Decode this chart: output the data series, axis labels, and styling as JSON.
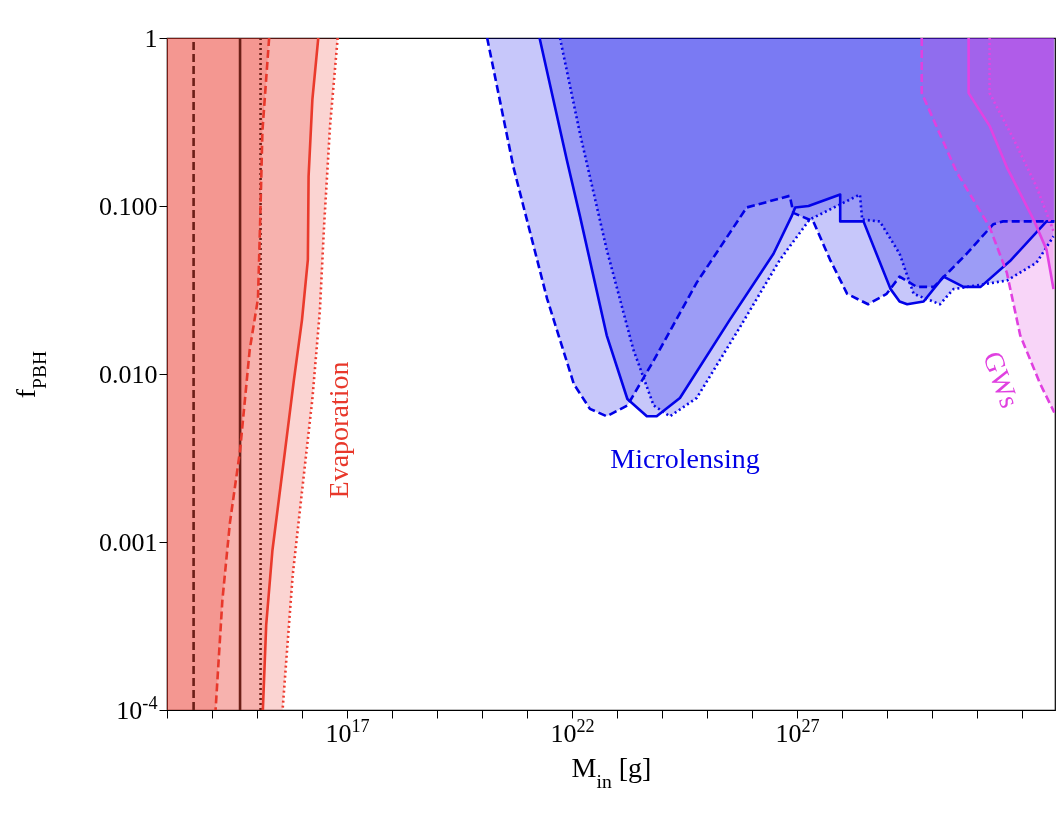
{
  "chart_data": {
    "type": "line",
    "xlabel": "M$_{in}$ [g]",
    "ylabel": "f$_{PBH}$",
    "log": "xy",
    "xlim": [
      10000000000000.0,
      5.4e+32
    ],
    "ylim": [
      0.0001,
      1
    ],
    "xticks": [
      {
        "value": 10000000000000.0,
        "label": null
      },
      {
        "value": 100000000000000.0,
        "label": null
      },
      {
        "value": 1000000000000000.0,
        "label": null
      },
      {
        "value": 1e+16,
        "label": null
      },
      {
        "value": 1e+17,
        "label": "10$^{17}$"
      },
      {
        "value": 1e+18,
        "label": null
      },
      {
        "value": 1e+19,
        "label": null
      },
      {
        "value": 1e+20,
        "label": null
      },
      {
        "value": 1e+21,
        "label": null
      },
      {
        "value": 1e+22,
        "label": "10$^{22}$"
      },
      {
        "value": 1e+23,
        "label": null
      },
      {
        "value": 1e+24,
        "label": null
      },
      {
        "value": 1e+25,
        "label": null
      },
      {
        "value": 1e+26,
        "label": null
      },
      {
        "value": 1e+27,
        "label": "10$^{27}$"
      },
      {
        "value": 1e+28,
        "label": null
      },
      {
        "value": 1e+29,
        "label": null
      },
      {
        "value": 1e+30,
        "label": null
      },
      {
        "value": 1e+31,
        "label": null
      },
      {
        "value": 1e+32,
        "label": null
      }
    ],
    "yticks": [
      1,
      {
        "value": 0.1,
        "label": "0.100"
      },
      {
        "value": 0.01,
        "label": "0.010"
      },
      0.001,
      {
        "value": 0.0001,
        "label": "10$^{-4}$"
      }
    ],
    "series": [
      {
        "color": "#6b1f17",
        "line_style": "dashed",
        "x": [
          39000000000000.0,
          39000000000000.0
        ],
        "values": [
          0.0001,
          1
        ]
      },
      {
        "color": "#6b1f17",
        "line_style": "solid",
        "x": [
          420000000000000.0,
          420000000000000.0
        ],
        "values": [
          0.0001,
          1
        ]
      },
      {
        "color": "#6b1f17",
        "line_style": "dotted",
        "x": [
          1200000000000000.0,
          1200000000000000.0
        ],
        "values": [
          0.0001,
          1
        ]
      },
      {
        "color": "#e8382b",
        "line_style": "dashed",
        "x": [
          1860000000000000.0,
          1320000000000000.0,
          1170000000000000.0,
          1050000000000000.0,
          690000000000000.0,
          420000000000000.0,
          250000000000000.0,
          170000000000000.0,
          120000000000000.0,
          10000000000000.0
        ],
        "values": [
          1,
          0.28,
          0.077,
          0.028,
          0.014,
          0.0035,
          0.0013,
          0.00045,
          0.0001,
          null
        ],
        "lower": [
          1,
          0.28,
          0.077,
          0.028,
          0.014,
          0.0035,
          0.0013,
          0.00045,
          0.0001,
          0.0001
        ],
        "upper": [
          1,
          1,
          1,
          1,
          1,
          1,
          1,
          1,
          1,
          1
        ]
      },
      {
        "color": "#ea3a2c",
        "line_style": "solid",
        "x": [
          2.3e+16,
          1.7e+16,
          1.4e+16,
          1.35e+16,
          1e+16,
          6600000000000000.0,
          4200000000000000.0,
          2200000000000000.0,
          1600000000000000.0,
          1350000000000000.0,
          10000000000000.0
        ],
        "values": [
          1,
          0.43,
          0.15,
          0.048,
          0.021,
          0.0092,
          0.0035,
          0.00089,
          0.00032,
          0.0001,
          null
        ],
        "lower": [
          1,
          0.43,
          0.15,
          0.048,
          0.021,
          0.0092,
          0.0035,
          0.00089,
          0.00032,
          0.0001,
          0.0001
        ],
        "upper": [
          1,
          1,
          1,
          1,
          1,
          1,
          1,
          1,
          1,
          1,
          1
        ]
      },
      {
        "color": "#ec3c30",
        "line_style": "dotted",
        "x": [
          6.2e+16,
          4.2e+16,
          3.1e+16,
          2.5e+16,
          1.7e+16,
          1e+16,
          6200000000000000.0,
          3700000000000000.0,
          10000000000000.0
        ],
        "values": [
          1,
          0.3,
          0.077,
          0.024,
          0.0071,
          0.002,
          0.00063,
          0.0001,
          null
        ],
        "lower": [
          1,
          0.3,
          0.077,
          0.024,
          0.0071,
          0.002,
          0.00063,
          0.0001,
          0.0001
        ],
        "upper": [
          1,
          1,
          1,
          1,
          1,
          1,
          1,
          1,
          1
        ]
      },
      {
        "color": "#0000e6",
        "line_style": "dashed",
        "x": [
          1.3e+20,
          5e+20,
          2.8e+21,
          1.1e+22,
          2.5e+22,
          5.9e+22,
          1.7e+23,
          6.5e+23,
          5.9e+24,
          7.6e+25,
          6.9e+26,
          8.3e+26,
          2.3e+27,
          5.4e+27,
          1.3e+28,
          3.8e+28,
          9.8e+28,
          1.9e+29,
          4.6e+29,
          1.1e+30,
          5.9e+30,
          2.3e+31,
          3.8e+31,
          5.2e+32
        ],
        "values": [
          1,
          0.17,
          0.028,
          0.0087,
          0.0062,
          0.0056,
          0.0065,
          0.012,
          0.035,
          0.098,
          0.115,
          0.091,
          0.081,
          0.048,
          0.03,
          0.026,
          0.03,
          0.038,
          0.033,
          0.033,
          0.052,
          0.078,
          0.081,
          0.081
        ],
        "lower": [
          1,
          0.17,
          0.028,
          0.0087,
          0.0062,
          0.0056,
          0.0065,
          0.012,
          0.035,
          0.098,
          0.115,
          0.091,
          0.081,
          0.048,
          0.03,
          0.026,
          0.03,
          0.038,
          0.033,
          0.033,
          0.052,
          0.078,
          0.081,
          0.081
        ],
        "upper": [
          1,
          1,
          1,
          1,
          1,
          1,
          1,
          1,
          1,
          1,
          1,
          1,
          1,
          1,
          1,
          1,
          1,
          1,
          1,
          1,
          1,
          1,
          1,
          1
        ]
      },
      {
        "color": "#0202e8",
        "line_style": "solid",
        "x": [
          1.9e+21,
          7.6e+21,
          1.5e+22,
          5.9e+22,
          1.7e+23,
          4.6e+23,
          7.6e+23,
          2.5e+24,
          3.2e+25,
          3e+26,
          7.6e+26,
          9.1e+26,
          1.8e+27,
          9.1e+27,
          9.1e+27,
          3e+28,
          1.2e+29,
          1.9e+29,
          2.8e+29,
          6.5e+29,
          1.8e+30,
          5e+30,
          1.2e+31,
          5.4e+31,
          3.5e+32,
          5.2e+32
        ],
        "values": [
          1,
          0.19,
          0.087,
          0.017,
          0.0071,
          0.0056,
          0.0056,
          0.0072,
          0.021,
          0.052,
          0.087,
          0.098,
          0.1,
          0.117,
          0.081,
          0.081,
          0.032,
          0.027,
          0.026,
          0.027,
          0.038,
          0.033,
          0.033,
          0.047,
          0.081,
          0.081
        ],
        "lower": [
          1,
          0.19,
          0.087,
          0.017,
          0.0071,
          0.0056,
          0.0056,
          0.0072,
          0.021,
          0.052,
          0.087,
          0.098,
          0.1,
          0.117,
          0.081,
          0.081,
          0.032,
          0.027,
          0.026,
          0.027,
          0.038,
          0.033,
          0.033,
          0.047,
          0.081,
          0.081
        ],
        "upper": [
          1,
          1,
          1,
          1,
          1,
          1,
          1,
          1,
          1,
          1,
          1,
          1,
          1,
          1,
          1,
          1,
          1,
          1,
          1,
          1,
          1,
          1,
          1,
          1,
          1,
          1
        ]
      },
      {
        "color": "#0404ea",
        "line_style": "dotted",
        "x": [
          5.4e+21,
          1.5e+22,
          5.9e+22,
          2.3e+23,
          6.5e+23,
          1.5e+24,
          5.9e+24,
          5.4e+25,
          4.2e+26,
          1.9e+27,
          2.5e+28,
          2.8e+28,
          6.9e+28,
          1.9e+29,
          3.9e+29,
          1.5e+30,
          3e+30,
          1.2e+31,
          4.6e+31,
          2.1e+32,
          5e+32
        ],
        "values": [
          1,
          0.27,
          0.055,
          0.014,
          0.0065,
          0.0056,
          0.0072,
          0.019,
          0.048,
          0.083,
          0.117,
          0.083,
          0.081,
          0.052,
          0.03,
          0.026,
          0.032,
          0.034,
          0.036,
          0.046,
          0.066
        ],
        "lower": [
          1,
          0.27,
          0.055,
          0.014,
          0.0065,
          0.0056,
          0.0072,
          0.019,
          0.048,
          0.083,
          0.117,
          0.083,
          0.081,
          0.052,
          0.03,
          0.026,
          0.032,
          0.034,
          0.036,
          0.046,
          0.066
        ],
        "upper": [
          1,
          1,
          1,
          1,
          1,
          1,
          1,
          1,
          1,
          1,
          1,
          1,
          1,
          1,
          1,
          1,
          1,
          1,
          1,
          1,
          1
        ]
      },
      {
        "color": "#e040e0",
        "line_style": "dashed",
        "x": [
          5.9e+29,
          5.9e+29,
          3.5e+30,
          1.9e+31,
          4.6e+31,
          9.1e+31,
          2.5e+32,
          5.2e+32
        ],
        "values": [
          1,
          0.47,
          0.16,
          0.075,
          0.04,
          0.017,
          0.0088,
          0.0059
        ],
        "lower": [
          1,
          0.47,
          0.16,
          0.075,
          0.04,
          0.017,
          0.0088,
          0.0059
        ],
        "upper": [
          1,
          1,
          1,
          1,
          1,
          1,
          1,
          1
        ]
      },
      {
        "color": "#e242e2",
        "line_style": "solid",
        "x": [
          6.5e+30,
          6.5e+30,
          1.9e+31,
          4.6e+31,
          1.8e+32,
          3.5e+32,
          5e+32
        ],
        "values": [
          1,
          0.47,
          0.3,
          0.17,
          0.083,
          0.055,
          0.032
        ],
        "lower": [
          1,
          0.47,
          0.3,
          0.17,
          0.083,
          0.055,
          0.032
        ],
        "upper": [
          1,
          1,
          1,
          1,
          1,
          1,
          1
        ]
      },
      {
        "color": "#e444e4",
        "line_style": "dotted",
        "x": [
          1.9e+31,
          1.9e+31,
          6.5e+31,
          2.1e+32,
          5.2e+32
        ],
        "values": [
          1,
          0.47,
          0.25,
          0.13,
          0.069
        ],
        "lower": [
          1,
          0.47,
          0.25,
          0.13,
          0.069
        ],
        "upper": [
          1,
          1,
          1,
          1,
          1
        ]
      }
    ],
    "annotations": [
      "Evaporation",
      "Microlensing",
      "GWs"
    ]
  }
}
